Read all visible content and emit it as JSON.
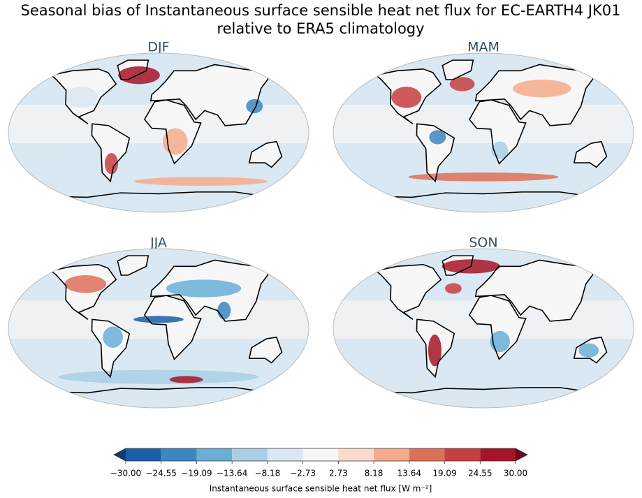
{
  "title": [
    "Seasonal bias of Instantaneous surface sensible heat net flux for EC-EARTH4 JK01",
    "relative to ERA5 climatology"
  ],
  "panels": [
    {
      "title": "DJF"
    },
    {
      "title": "MAM"
    },
    {
      "title": "JJA"
    },
    {
      "title": "SON"
    }
  ],
  "colorbar": {
    "label": "Instantaneous surface sensible heat net flux [W m⁻²]",
    "extend": "both",
    "ticks": [
      {
        "value": -30,
        "label": "−30.00"
      },
      {
        "value": -24.55,
        "label": "−24.55"
      },
      {
        "value": -19.09,
        "label": "−19.09"
      },
      {
        "value": -13.64,
        "label": "−13.64"
      },
      {
        "value": -8.18,
        "label": "−8.18"
      },
      {
        "value": -2.73,
        "label": "−2.73"
      },
      {
        "value": 2.73,
        "label": "2.73"
      },
      {
        "value": 8.18,
        "label": "8.18"
      },
      {
        "value": 13.64,
        "label": "13.64"
      },
      {
        "value": 19.09,
        "label": "19.09"
      },
      {
        "value": 24.55,
        "label": "24.55"
      },
      {
        "value": 30,
        "label": "30.00"
      }
    ],
    "colors": [
      "#1c5ea6",
      "#3b87c0",
      "#6aaed6",
      "#a8cfe5",
      "#d9e8f2",
      "#f7f7f7",
      "#fbdccc",
      "#f4ab8c",
      "#de7059",
      "#c5403f",
      "#a51427"
    ],
    "under_color": "#0d3a78",
    "over_color": "#6b0a20"
  }
}
